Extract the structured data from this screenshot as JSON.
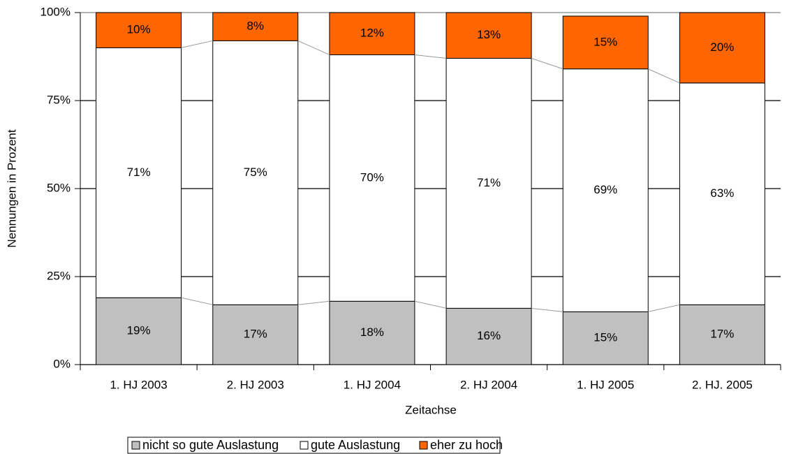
{
  "chart_data": {
    "type": "stacked_bar",
    "x_label": "Zeitachse",
    "y_label": "Nennungen in Prozent",
    "categories": [
      "1. HJ 2003",
      "2. HJ 2003",
      "1. HJ 2004",
      "2. HJ 2004",
      "1. HJ 2005",
      "2. HJ. 2005"
    ],
    "series": [
      {
        "name": "nicht so gute Auslastung",
        "color": "#c0c0c0",
        "values": [
          19,
          17,
          18,
          16,
          15,
          17
        ],
        "value_labels": [
          "19%",
          "17%",
          "18%",
          "16%",
          "15%",
          "17%"
        ]
      },
      {
        "name": "gute Auslastung",
        "color": "#ffffff",
        "values": [
          71,
          75,
          70,
          71,
          69,
          63
        ],
        "value_labels": [
          "71%",
          "75%",
          "70%",
          "71%",
          "69%",
          "63%"
        ]
      },
      {
        "name": "eher zu hoch",
        "color": "#ff6600",
        "values": [
          10,
          8,
          12,
          13,
          15,
          20
        ],
        "value_labels": [
          "10%",
          "8%",
          "12%",
          "13%",
          "15%",
          "20%"
        ]
      }
    ],
    "ylim": [
      0,
      100
    ],
    "yticks": [
      {
        "value": 0,
        "label": "0%"
      },
      {
        "value": 25,
        "label": "25%"
      },
      {
        "value": 50,
        "label": "50%"
      },
      {
        "value": 75,
        "label": "75%"
      },
      {
        "value": 100,
        "label": "100%"
      }
    ],
    "grid": true,
    "legend": "bottom"
  }
}
